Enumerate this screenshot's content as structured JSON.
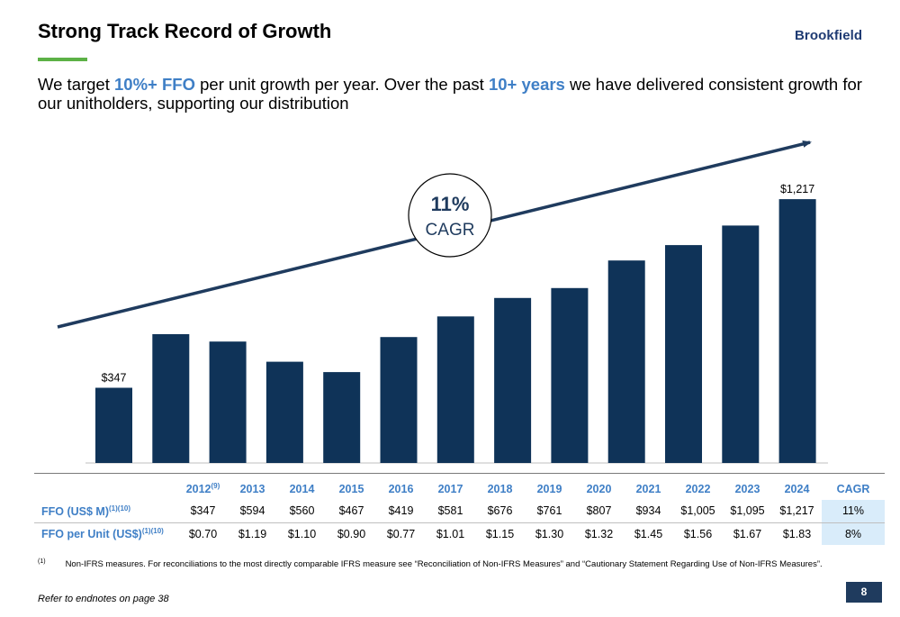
{
  "header": {
    "title": "Strong Track Record of Growth",
    "logo": "Brookfield"
  },
  "subtitle": {
    "part1": "We target ",
    "highlight1": "10%+ FFO",
    "part2": " per unit growth per year. Over the past ",
    "highlight2": "10+ years",
    "part3": " we have delivered consistent growth for our unitholders, supporting our distribution"
  },
  "colors": {
    "bar": "#0f3358",
    "trend_arrow": "#1f3b5e",
    "accent_green": "#5cb146",
    "highlight_blue": "#3f7fc6",
    "cagr_cell": "#d9ecfa"
  },
  "chart_data": {
    "type": "bar",
    "categories": [
      "2012",
      "2013",
      "2014",
      "2015",
      "2016",
      "2017",
      "2018",
      "2019",
      "2020",
      "2021",
      "2022",
      "2023",
      "2024"
    ],
    "values": [
      347,
      594,
      560,
      467,
      419,
      581,
      676,
      761,
      807,
      934,
      1005,
      1095,
      1217
    ],
    "shown_labels": [
      {
        "index": 0,
        "text": "$347"
      },
      {
        "index": 12,
        "text": "$1,217"
      }
    ],
    "annotation": {
      "pct": "11%",
      "text": "CAGR"
    },
    "xlabel": "",
    "ylabel": "",
    "legend": "none",
    "grid": false
  },
  "table": {
    "headers": [
      {
        "text": "2012",
        "sup": "(9)"
      },
      {
        "text": "2013",
        "sup": ""
      },
      {
        "text": "2014",
        "sup": ""
      },
      {
        "text": "2015",
        "sup": ""
      },
      {
        "text": "2016",
        "sup": ""
      },
      {
        "text": "2017",
        "sup": ""
      },
      {
        "text": "2018",
        "sup": ""
      },
      {
        "text": "2019",
        "sup": ""
      },
      {
        "text": "2020",
        "sup": ""
      },
      {
        "text": "2021",
        "sup": ""
      },
      {
        "text": "2022",
        "sup": ""
      },
      {
        "text": "2023",
        "sup": ""
      },
      {
        "text": "2024",
        "sup": ""
      }
    ],
    "cagr_header": "CAGR",
    "rows": [
      {
        "label": "FFO (US$ M)",
        "sup": "(1)(10)",
        "values": [
          "$347",
          "$594",
          "$560",
          "$467",
          "$419",
          "$581",
          "$676",
          "$761",
          "$807",
          "$934",
          "$1,005",
          "$1,095",
          "$1,217"
        ],
        "cagr": "11%"
      },
      {
        "label": "FFO per Unit (US$)",
        "sup": "(1)(10)",
        "values": [
          "$0.70",
          "$1.19",
          "$1.10",
          "$0.90",
          "$0.77",
          "$1.01",
          "$1.15",
          "$1.30",
          "$1.32",
          "$1.45",
          "$1.56",
          "$1.67",
          "$1.83"
        ],
        "cagr": "8%"
      }
    ]
  },
  "footnote": {
    "mark": "(1)",
    "text": "Non-IFRS measures. For reconciliations to the most directly comparable IFRS measure see “Reconciliation of Non-IFRS Measures” and “Cautionary Statement Regarding Use of Non-IFRS Measures”."
  },
  "footer": {
    "refer": "Refer to endnotes on page 38",
    "page": "8"
  }
}
